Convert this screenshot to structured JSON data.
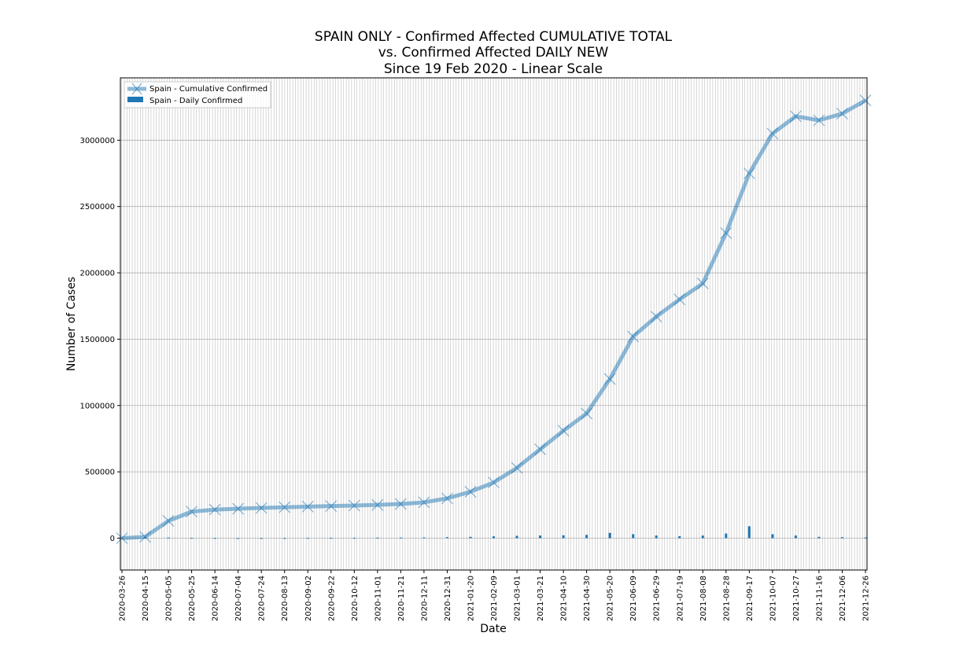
{
  "chart_data": {
    "type": "line",
    "title_lines": [
      "SPAIN ONLY - Confirmed Affected CUMULATIVE TOTAL",
      "vs. Confirmed Affected DAILY NEW",
      "Since 19 Feb 2020 - Linear Scale"
    ],
    "xlabel": "Date",
    "ylabel": "Number of Cases",
    "ylim": [
      -240000,
      3470000
    ],
    "yticks": [
      0,
      500000,
      1000000,
      1500000,
      2000000,
      2500000,
      3000000
    ],
    "ytick_labels": [
      "0",
      "500000",
      "1000000",
      "1500000",
      "2000000",
      "2500000",
      "3000000"
    ],
    "grid": true,
    "legend_position": "top-left",
    "series": [
      {
        "name": "Spain - Cumulative Confirmed",
        "kind": "line",
        "color": "#1f77b4",
        "marker": "x",
        "x": [
          "2020-03-26",
          "2020-04-15",
          "2020-05-05",
          "2020-05-25",
          "2020-06-14",
          "2020-07-04",
          "2020-07-24",
          "2020-08-13",
          "2020-09-02",
          "2020-09-22",
          "2020-10-12",
          "2020-11-01",
          "2020-11-21",
          "2020-12-11",
          "2020-12-31",
          "2021-01-20",
          "2021-02-09",
          "2021-03-01",
          "2021-03-21",
          "2021-04-10",
          "2021-04-30",
          "2021-05-20",
          "2021-06-09",
          "2021-06-29",
          "2021-07-19",
          "2021-08-08",
          "2021-08-28",
          "2021-09-17",
          "2021-10-07",
          "2021-10-27",
          "2021-11-16",
          "2021-12-06",
          "2021-12-26"
        ],
        "values": [
          0,
          10000,
          130000,
          200000,
          215000,
          222000,
          228000,
          233000,
          238000,
          242000,
          246000,
          251000,
          258000,
          270000,
          300000,
          350000,
          420000,
          530000,
          670000,
          810000,
          940000,
          1200000,
          1520000,
          1670000,
          1800000,
          1920000,
          2300000,
          2750000,
          3050000,
          3180000,
          3150000,
          3200000,
          3300000
        ]
      },
      {
        "name": "Spain - Daily Confirmed",
        "kind": "bar",
        "color": "#1f77b4",
        "x": [
          "2020-03-26",
          "2020-04-15",
          "2020-05-05",
          "2020-05-25",
          "2020-06-14",
          "2020-07-04",
          "2020-07-24",
          "2020-08-13",
          "2020-09-02",
          "2020-09-22",
          "2020-10-12",
          "2020-11-01",
          "2020-11-21",
          "2020-12-11",
          "2020-12-31",
          "2021-01-20",
          "2021-02-09",
          "2021-03-01",
          "2021-03-21",
          "2021-04-10",
          "2021-04-30",
          "2021-05-20",
          "2021-06-09",
          "2021-06-29",
          "2021-07-19",
          "2021-08-08",
          "2021-08-28",
          "2021-09-17",
          "2021-10-07",
          "2021-10-27",
          "2021-11-16",
          "2021-12-06",
          "2021-12-26"
        ],
        "values": [
          2000,
          9000,
          5000,
          3000,
          1000,
          500,
          500,
          1000,
          2000,
          3000,
          3000,
          4000,
          5000,
          6000,
          8000,
          10000,
          14000,
          18000,
          20000,
          22000,
          25000,
          40000,
          30000,
          20000,
          15000,
          20000,
          35000,
          90000,
          30000,
          20000,
          10000,
          8000,
          5000
        ]
      }
    ],
    "x_tick_labels": [
      "2020-03-26",
      "2020-04-15",
      "2020-05-05",
      "2020-05-25",
      "2020-06-14",
      "2020-07-04",
      "2020-07-24",
      "2020-08-13",
      "2020-09-02",
      "2020-09-22",
      "2020-10-12",
      "2020-11-01",
      "2020-11-21",
      "2020-12-11",
      "2020-12-31",
      "2021-01-20",
      "2021-02-09",
      "2021-03-01",
      "2021-03-21",
      "2021-04-10",
      "2021-04-30",
      "2021-05-20",
      "2021-06-09",
      "2021-06-29",
      "2021-07-19",
      "2021-08-08",
      "2021-08-28",
      "2021-09-17",
      "2021-10-07",
      "2021-10-27",
      "2021-11-16",
      "2021-12-06",
      "2021-12-26"
    ]
  }
}
